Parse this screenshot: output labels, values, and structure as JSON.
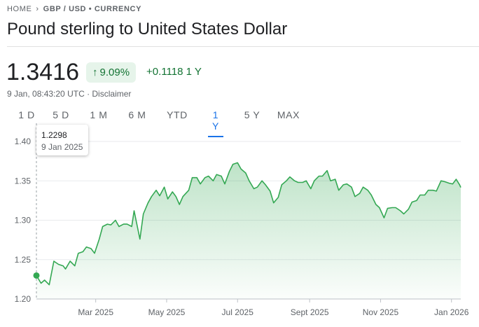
{
  "breadcrumb": {
    "home": "HOME",
    "current": "GBP / USD • CURRENCY"
  },
  "title": "Pound sterling to United States Dollar",
  "price": "1.3416",
  "change": {
    "percent": "9.09%",
    "absolute": "+0.1118",
    "period": "1 Y"
  },
  "timestamp": "9 Jan, 08:43:20 UTC · Disclaimer",
  "tabs": [
    "1 D",
    "5 D",
    "1 M",
    "6 M",
    "YTD",
    "1 Y",
    "5 Y",
    "MAX"
  ],
  "active_tab": "1 Y",
  "tooltip": {
    "value": "1.2298",
    "date": "9 Jan 2025"
  },
  "colors": {
    "up": "#137333",
    "line": "#34a853",
    "accent": "#1a73e8"
  },
  "icons": {
    "breadcrumb_separator": "chevron-right-icon",
    "change_arrow": "arrow-up-icon"
  },
  "chart_data": {
    "type": "area",
    "ylim": [
      1.2,
      1.4
    ],
    "yticks": [
      1.2,
      1.25,
      1.3,
      1.35,
      1.4
    ],
    "ytick_labels": [
      "1.20",
      "1.25",
      "1.30",
      "1.35",
      "1.40"
    ],
    "xlim": [
      "2025-01-09",
      "2026-01-09"
    ],
    "xticks": [
      {
        "date": "2025-03-01",
        "label": "Mar 2025"
      },
      {
        "date": "2025-05-01",
        "label": "May 2025"
      },
      {
        "date": "2025-07-01",
        "label": "Jul 2025"
      },
      {
        "date": "2025-09-01",
        "label": "Sept 2025"
      },
      {
        "date": "2025-11-01",
        "label": "Nov 2025"
      },
      {
        "date": "2026-01-01",
        "label": "Jan 2026"
      }
    ],
    "grid": true,
    "series": [
      {
        "points": [
          [
            "2025-01-09",
            1.2298
          ],
          [
            "2025-01-13",
            1.22
          ],
          [
            "2025-01-16",
            1.224
          ],
          [
            "2025-01-20",
            1.218
          ],
          [
            "2025-01-24",
            1.248
          ],
          [
            "2025-01-28",
            1.244
          ],
          [
            "2025-02-01",
            1.242
          ],
          [
            "2025-02-03",
            1.238
          ],
          [
            "2025-02-07",
            1.248
          ],
          [
            "2025-02-11",
            1.242
          ],
          [
            "2025-02-14",
            1.258
          ],
          [
            "2025-02-18",
            1.26
          ],
          [
            "2025-02-21",
            1.266
          ],
          [
            "2025-02-25",
            1.264
          ],
          [
            "2025-02-28",
            1.258
          ],
          [
            "2025-03-04",
            1.276
          ],
          [
            "2025-03-07",
            1.292
          ],
          [
            "2025-03-11",
            1.295
          ],
          [
            "2025-03-14",
            1.294
          ],
          [
            "2025-03-18",
            1.3
          ],
          [
            "2025-03-21",
            1.292
          ],
          [
            "2025-03-25",
            1.295
          ],
          [
            "2025-03-28",
            1.295
          ],
          [
            "2025-04-01",
            1.292
          ],
          [
            "2025-04-03",
            1.312
          ],
          [
            "2025-04-08",
            1.276
          ],
          [
            "2025-04-11",
            1.308
          ],
          [
            "2025-04-15",
            1.322
          ],
          [
            "2025-04-18",
            1.33
          ],
          [
            "2025-04-22",
            1.338
          ],
          [
            "2025-04-25",
            1.331
          ],
          [
            "2025-04-29",
            1.342
          ],
          [
            "2025-05-02",
            1.327
          ],
          [
            "2025-05-06",
            1.336
          ],
          [
            "2025-05-09",
            1.33
          ],
          [
            "2025-05-12",
            1.32
          ],
          [
            "2025-05-15",
            1.33
          ],
          [
            "2025-05-20",
            1.338
          ],
          [
            "2025-05-23",
            1.354
          ],
          [
            "2025-05-27",
            1.354
          ],
          [
            "2025-05-30",
            1.346
          ],
          [
            "2025-06-03",
            1.354
          ],
          [
            "2025-06-06",
            1.356
          ],
          [
            "2025-06-10",
            1.35
          ],
          [
            "2025-06-13",
            1.358
          ],
          [
            "2025-06-17",
            1.356
          ],
          [
            "2025-06-20",
            1.346
          ],
          [
            "2025-06-24",
            1.362
          ],
          [
            "2025-06-27",
            1.371
          ],
          [
            "2025-07-01",
            1.373
          ],
          [
            "2025-07-04",
            1.365
          ],
          [
            "2025-07-08",
            1.36
          ],
          [
            "2025-07-11",
            1.35
          ],
          [
            "2025-07-15",
            1.34
          ],
          [
            "2025-07-18",
            1.342
          ],
          [
            "2025-07-22",
            1.35
          ],
          [
            "2025-07-25",
            1.345
          ],
          [
            "2025-07-29",
            1.337
          ],
          [
            "2025-08-01",
            1.322
          ],
          [
            "2025-08-05",
            1.329
          ],
          [
            "2025-08-08",
            1.345
          ],
          [
            "2025-08-12",
            1.35
          ],
          [
            "2025-08-15",
            1.355
          ],
          [
            "2025-08-19",
            1.35
          ],
          [
            "2025-08-22",
            1.348
          ],
          [
            "2025-08-26",
            1.348
          ],
          [
            "2025-08-29",
            1.35
          ],
          [
            "2025-09-02",
            1.34
          ],
          [
            "2025-09-05",
            1.35
          ],
          [
            "2025-09-09",
            1.356
          ],
          [
            "2025-09-12",
            1.356
          ],
          [
            "2025-09-16",
            1.363
          ],
          [
            "2025-09-19",
            1.35
          ],
          [
            "2025-09-23",
            1.352
          ],
          [
            "2025-09-26",
            1.338
          ],
          [
            "2025-09-30",
            1.345
          ],
          [
            "2025-10-03",
            1.346
          ],
          [
            "2025-10-07",
            1.342
          ],
          [
            "2025-10-10",
            1.33
          ],
          [
            "2025-10-14",
            1.334
          ],
          [
            "2025-10-17",
            1.342
          ],
          [
            "2025-10-21",
            1.338
          ],
          [
            "2025-10-24",
            1.332
          ],
          [
            "2025-10-28",
            1.32
          ],
          [
            "2025-10-31",
            1.316
          ],
          [
            "2025-11-04",
            1.303
          ],
          [
            "2025-11-07",
            1.315
          ],
          [
            "2025-11-11",
            1.316
          ],
          [
            "2025-11-14",
            1.316
          ],
          [
            "2025-11-18",
            1.312
          ],
          [
            "2025-11-21",
            1.308
          ],
          [
            "2025-11-25",
            1.314
          ],
          [
            "2025-11-28",
            1.323
          ],
          [
            "2025-12-02",
            1.325
          ],
          [
            "2025-12-05",
            1.332
          ],
          [
            "2025-12-09",
            1.332
          ],
          [
            "2025-12-12",
            1.338
          ],
          [
            "2025-12-16",
            1.338
          ],
          [
            "2025-12-19",
            1.337
          ],
          [
            "2025-12-23",
            1.35
          ],
          [
            "2025-12-26",
            1.349
          ],
          [
            "2025-12-30",
            1.347
          ],
          [
            "2026-01-02",
            1.346
          ],
          [
            "2026-01-05",
            1.352
          ],
          [
            "2026-01-08",
            1.345
          ],
          [
            "2026-01-09",
            1.3416
          ]
        ]
      }
    ]
  }
}
